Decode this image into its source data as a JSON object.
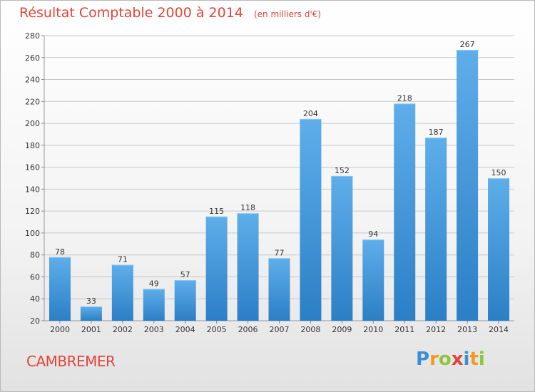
{
  "header": {
    "title": "Résultat Comptable 2000 à 2014",
    "subtitle": "(en milliers d'€)"
  },
  "footer": {
    "location": "CAMBREMER",
    "logo": {
      "text": "Proxiti",
      "letters": [
        {
          "char": "P",
          "color": "#3a8fd6"
        },
        {
          "char": "r",
          "color": "#f39a1e"
        },
        {
          "char": "o",
          "color": "#8cc63f"
        },
        {
          "char": "x",
          "color": "#e0453a"
        },
        {
          "char": "i",
          "color": "#3a8fd6"
        },
        {
          "char": "t",
          "color": "#f39a1e"
        },
        {
          "char": "i",
          "color": "#8cc63f"
        }
      ]
    }
  },
  "colors": {
    "bar_top": "#5eaeea",
    "bar_bottom": "#2b7fc6",
    "grid": "#c8c8c8",
    "title": "#e0453a",
    "text": "#333333"
  },
  "chart_data": {
    "type": "bar",
    "categories": [
      "2000",
      "2001",
      "2002",
      "2003",
      "2004",
      "2005",
      "2006",
      "2007",
      "2008",
      "2009",
      "2010",
      "2011",
      "2012",
      "2013",
      "2014"
    ],
    "values": [
      78,
      33,
      71,
      49,
      57,
      115,
      118,
      77,
      204,
      152,
      94,
      218,
      187,
      267,
      150
    ],
    "data_labels": [
      "78",
      "33",
      "71",
      "49",
      "57",
      "115",
      "118",
      "77",
      "204",
      "152",
      "94",
      "218",
      "187",
      "267",
      "150"
    ],
    "title": "Résultat Comptable 2000 à 2014",
    "subtitle": "(en milliers d'€)",
    "ylim": [
      20,
      280
    ],
    "yticks": [
      20,
      40,
      60,
      80,
      100,
      120,
      140,
      160,
      180,
      200,
      220,
      240,
      260,
      280
    ],
    "grid": true,
    "legend": "none"
  }
}
